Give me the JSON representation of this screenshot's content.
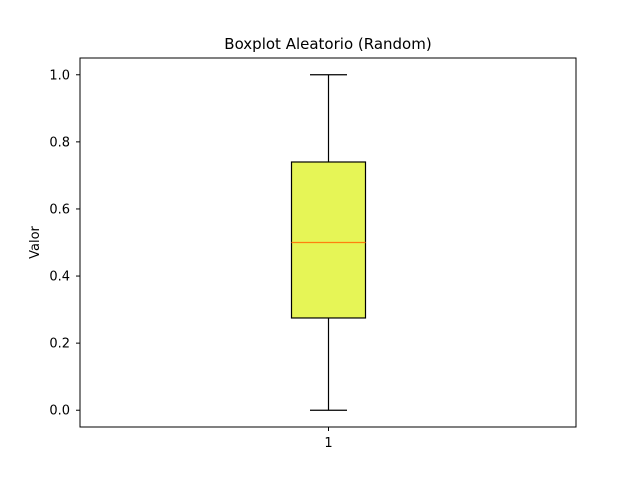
{
  "chart_data": {
    "type": "boxplot",
    "title": "Boxplot Aleatorio (Random)",
    "xlabel": "",
    "ylabel": "Valor",
    "x_ticks": [
      "1"
    ],
    "y_ticks": [
      "0.0",
      "0.2",
      "0.4",
      "0.6",
      "0.8",
      "1.0"
    ],
    "ylim": [
      -0.05,
      1.05
    ],
    "grid": false,
    "boxes": [
      {
        "label": "1",
        "min": 0.0,
        "q1": 0.275,
        "median": 0.5,
        "q3": 0.74,
        "max": 1.0
      }
    ],
    "colors": {
      "box_fill": "#e6f556",
      "median_line": "#ff7f0e",
      "edge": "#000000"
    }
  }
}
